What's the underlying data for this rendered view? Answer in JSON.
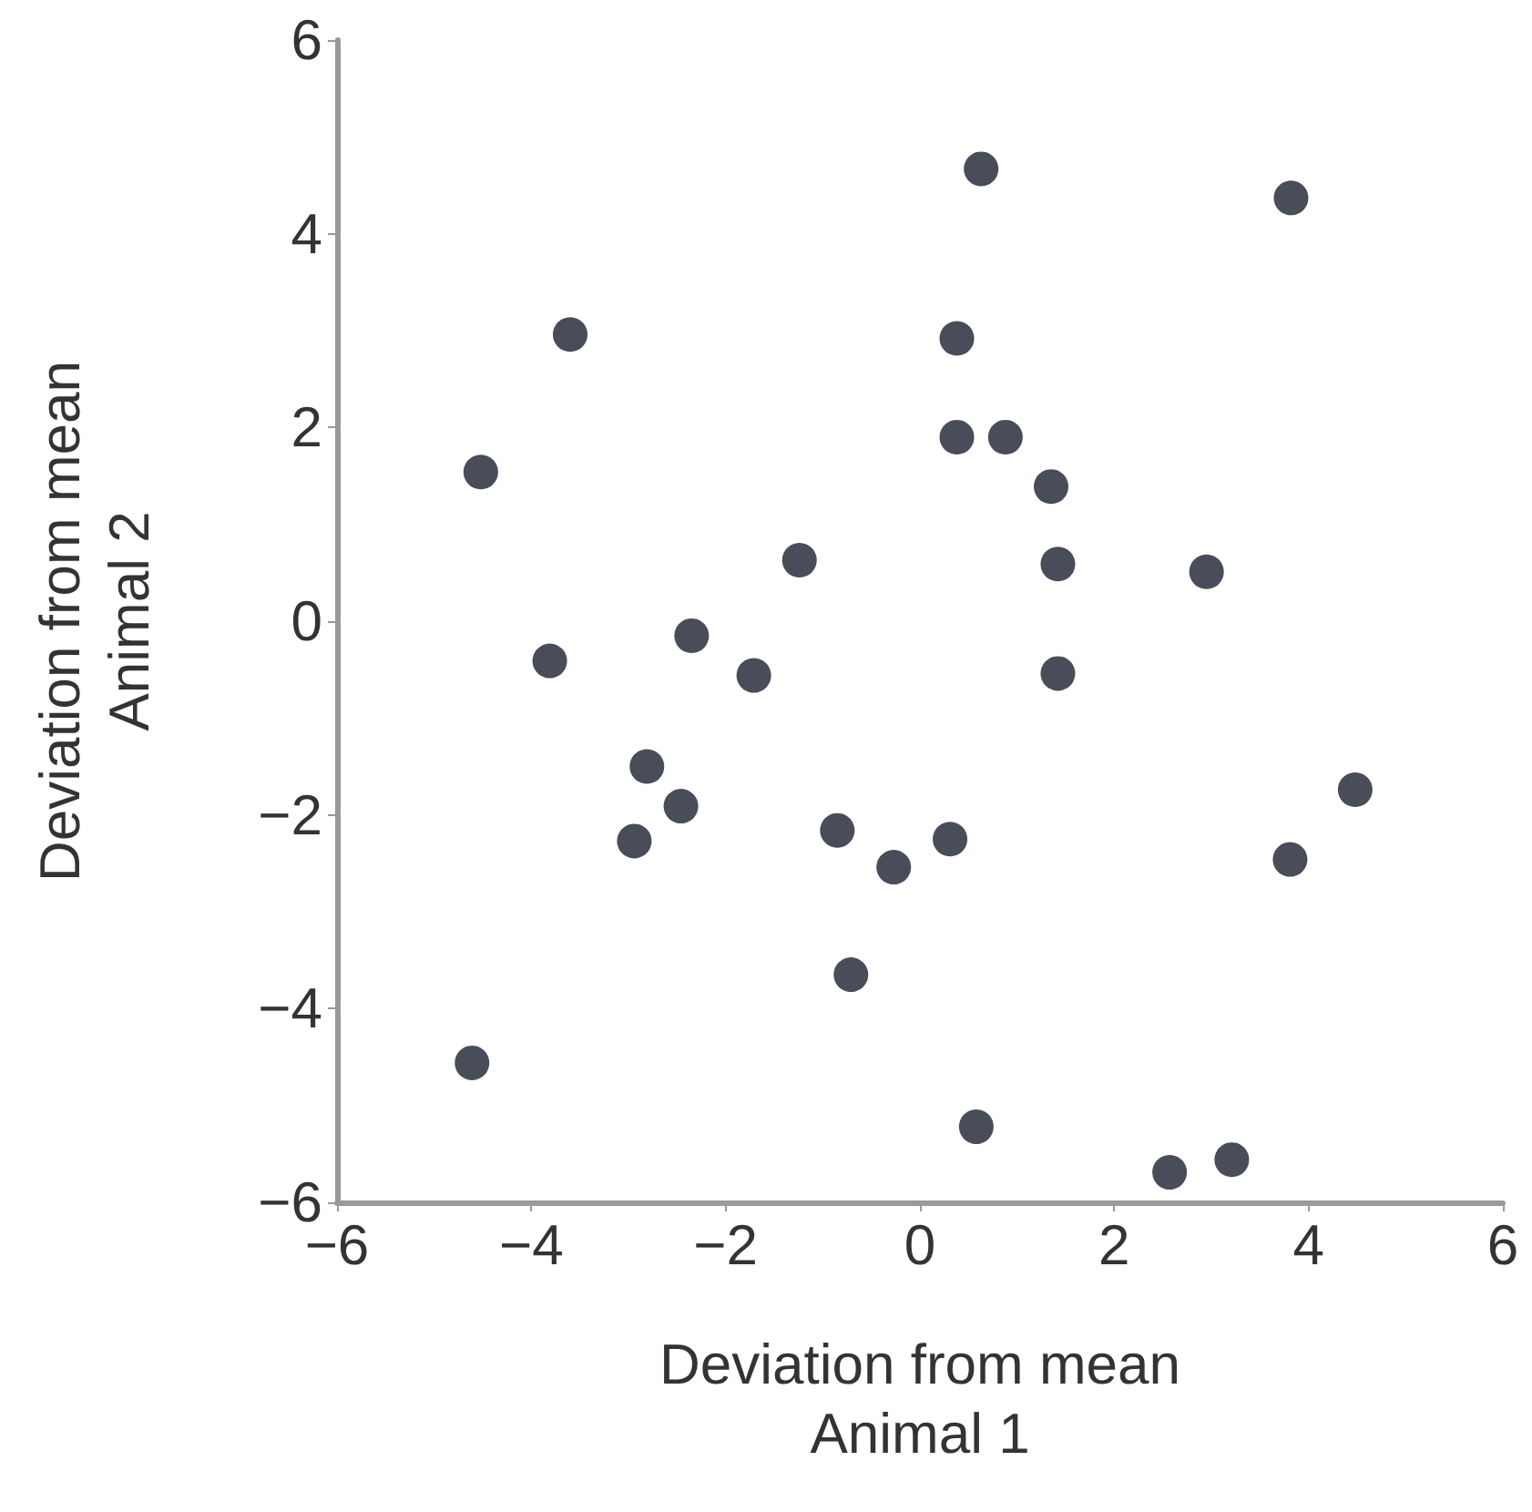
{
  "chart_data": {
    "type": "scatter",
    "xlabel": "Deviation from mean\nAnimal 1",
    "ylabel": "Deviation from mean\nAnimal 2",
    "x": [
      0.63,
      3.82,
      -3.6,
      0.38,
      0.38,
      0.88,
      -4.52,
      1.35,
      1.42,
      -1.24,
      2.95,
      -3.81,
      -2.35,
      -1.71,
      1.42,
      -2.81,
      -2.46,
      -2.94,
      -0.85,
      -0.27,
      0.31,
      -0.71,
      -4.61,
      0.58,
      2.57,
      3.21,
      3.81,
      4.48
    ],
    "values": [
      4.67,
      4.37,
      2.96,
      2.92,
      1.9,
      1.9,
      1.54,
      1.39,
      0.59,
      0.63,
      0.51,
      -0.41,
      -0.15,
      -0.56,
      -0.54,
      -1.5,
      -1.91,
      -2.27,
      -2.16,
      -2.54,
      -2.25,
      -3.65,
      -4.56,
      -5.22,
      -5.69,
      -5.56,
      -2.46,
      -1.74
    ],
    "color": "#1b2030",
    "marker": "circle",
    "xlim": [
      -6,
      6
    ],
    "xticks": [
      -6,
      -4,
      -2,
      0,
      2,
      4,
      6
    ],
    "ylim": [
      -6,
      6
    ],
    "yticks": [
      -6,
      -4,
      -2,
      0,
      2,
      4,
      6
    ]
  }
}
